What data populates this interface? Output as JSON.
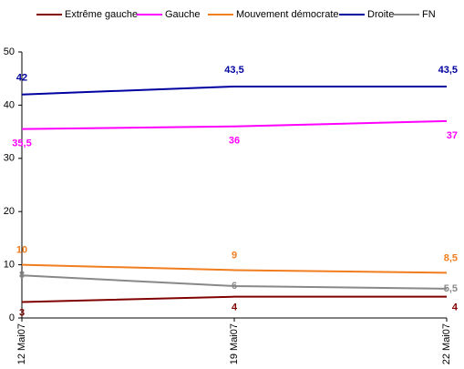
{
  "chart_data": {
    "type": "line",
    "categories": [
      "12 Mai07",
      "19 Mai07",
      "22 Mai07"
    ],
    "series": [
      {
        "name": "Extrême gauche",
        "color": "#800000",
        "values": [
          3,
          4,
          4
        ]
      },
      {
        "name": "Gauche",
        "color": "#ff00ff",
        "values": [
          35.5,
          36,
          37
        ],
        "value_labels": [
          "35,5",
          "36",
          "37"
        ]
      },
      {
        "name": "Mouvement démocrate",
        "color": "#f07d1e",
        "values": [
          10,
          9,
          8.5
        ],
        "value_labels": [
          "10",
          "9",
          "8,5"
        ]
      },
      {
        "name": "Droite",
        "color": "#0000a0",
        "values": [
          42,
          43.5,
          43.5
        ],
        "value_labels": [
          "42",
          "43,5",
          "43,5"
        ]
      },
      {
        "name": "FN",
        "color": "#888888",
        "values": [
          8,
          6,
          5.5
        ],
        "value_labels": [
          "8",
          "6",
          "5,5"
        ]
      }
    ],
    "ylim": [
      0,
      50
    ],
    "yticks": [
      0,
      10,
      20,
      30,
      40,
      50
    ],
    "grid": false,
    "legend": "top"
  }
}
